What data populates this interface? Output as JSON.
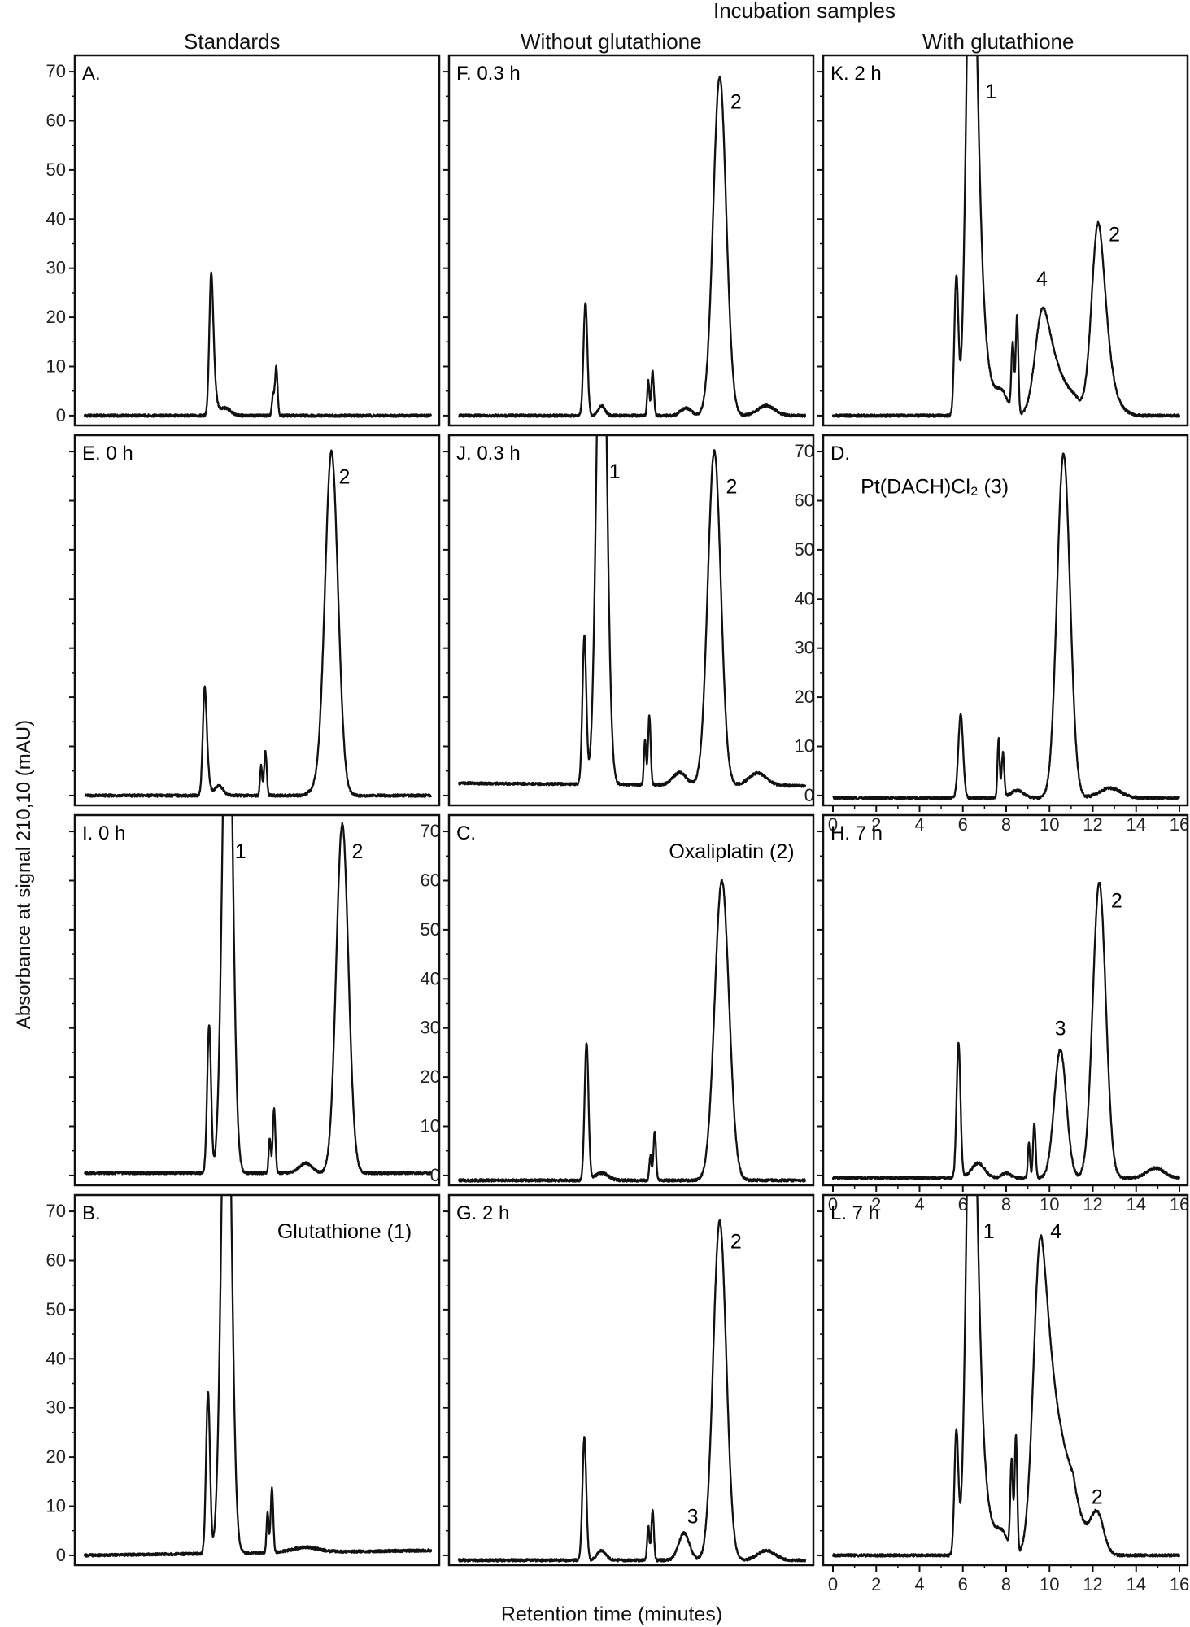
{
  "figure": {
    "headers": {
      "incubation": "Incubation samples",
      "standards": "Standards",
      "without": "Without glutathione",
      "with": "With glutathione"
    },
    "ylabel": "Absorbance at signal 210,10 (mAU)",
    "xlabel": "Retention time (minutes)",
    "colors": {
      "trace": "#111111",
      "frame": "#111111"
    }
  },
  "chart_data": [
    {
      "id": "A",
      "type": "line",
      "title": "A.",
      "xlim": [
        0,
        16
      ],
      "ylim": [
        -2,
        72
      ],
      "xticks": [
        0,
        2,
        4,
        6,
        8,
        10,
        12,
        14,
        16
      ],
      "yticks": [
        0,
        10,
        20,
        30,
        40,
        50,
        60,
        70
      ],
      "show_yticks": true,
      "show_xticks": false,
      "baseline_start": 0,
      "baseline_end": 0,
      "peaks": [
        {
          "t": 5.85,
          "h": 29,
          "w": 0.09,
          "tail": 0.4
        },
        {
          "t": 6.5,
          "h": 1.5,
          "w": 0.25
        },
        {
          "t": 8.7,
          "h": 4,
          "w": 0.05
        },
        {
          "t": 8.85,
          "h": 10,
          "w": 0.06
        }
      ],
      "labels": []
    },
    {
      "id": "E",
      "type": "line",
      "title": "E. 0 h",
      "xlim": [
        0,
        16
      ],
      "ylim": [
        -2,
        72
      ],
      "xticks": [
        0,
        2,
        4,
        6,
        8,
        10,
        12,
        14,
        16
      ],
      "yticks": [
        0,
        10,
        20,
        30,
        40,
        50,
        60,
        70
      ],
      "show_yticks": false,
      "show_xticks": false,
      "baseline_start": 0,
      "baseline_end": 0,
      "peaks": [
        {
          "t": 5.55,
          "h": 22,
          "w": 0.09,
          "tail": 0.3
        },
        {
          "t": 6.2,
          "h": 2,
          "w": 0.2
        },
        {
          "t": 8.15,
          "h": 6,
          "w": 0.05
        },
        {
          "t": 8.35,
          "h": 9,
          "w": 0.06
        },
        {
          "t": 10.6,
          "h": 1,
          "w": 0.25
        },
        {
          "t": 11.4,
          "h": 70,
          "w": 0.3
        }
      ],
      "labels": [
        {
          "text": "2",
          "t": 12.0,
          "v": 65
        }
      ]
    },
    {
      "id": "I",
      "type": "line",
      "title": "I. 0 h",
      "xlim": [
        0,
        16
      ],
      "ylim": [
        -2,
        72
      ],
      "xticks": [
        0,
        2,
        4,
        6,
        8,
        10,
        12,
        14,
        16
      ],
      "yticks": [
        0,
        10,
        20,
        30,
        40,
        50,
        60,
        70
      ],
      "show_yticks": false,
      "show_xticks": false,
      "baseline_start": 0.5,
      "baseline_end": 0.5,
      "peaks": [
        {
          "t": 5.75,
          "h": 30,
          "w": 0.09
        },
        {
          "t": 6.6,
          "h": 120,
          "w": 0.22
        },
        {
          "t": 8.55,
          "h": 7,
          "w": 0.05
        },
        {
          "t": 8.75,
          "h": 13,
          "w": 0.06
        },
        {
          "t": 10.2,
          "h": 2,
          "w": 0.3
        },
        {
          "t": 11.9,
          "h": 71,
          "w": 0.28
        }
      ],
      "labels": [
        {
          "text": "1",
          "t": 7.2,
          "v": 66
        },
        {
          "text": "2",
          "t": 12.6,
          "v": 66
        }
      ]
    },
    {
      "id": "B",
      "type": "line",
      "title": "B.",
      "xlim": [
        0,
        16
      ],
      "ylim": [
        -2,
        72
      ],
      "xticks": [
        0,
        2,
        4,
        6,
        8,
        10,
        12,
        14,
        16
      ],
      "yticks": [
        0,
        10,
        20,
        30,
        40,
        50,
        60,
        70
      ],
      "show_yticks": true,
      "show_xticks": false,
      "baseline_start": 0,
      "baseline_end": 1,
      "peaks": [
        {
          "t": 5.7,
          "h": 33,
          "w": 0.09
        },
        {
          "t": 6.55,
          "h": 120,
          "w": 0.22
        },
        {
          "t": 8.45,
          "h": 8,
          "w": 0.05
        },
        {
          "t": 8.65,
          "h": 13,
          "w": 0.06
        },
        {
          "t": 10.2,
          "h": 1,
          "w": 0.6
        }
      ],
      "labels": [
        {
          "text": "Glutathione (1)",
          "t": 12.0,
          "v": 66
        }
      ]
    },
    {
      "id": "F",
      "type": "line",
      "title": "F. 0.3 h",
      "xlim": [
        0,
        16
      ],
      "ylim": [
        -2,
        72
      ],
      "xticks": [
        0,
        2,
        4,
        6,
        8,
        10,
        12,
        14,
        16
      ],
      "yticks": [
        0,
        10,
        20,
        30,
        40,
        50,
        60,
        70
      ],
      "show_yticks": false,
      "show_xticks": false,
      "baseline_start": 0,
      "baseline_end": 0,
      "peaks": [
        {
          "t": 5.85,
          "h": 23,
          "w": 0.09
        },
        {
          "t": 6.6,
          "h": 2,
          "w": 0.15
        },
        {
          "t": 8.75,
          "h": 7,
          "w": 0.05
        },
        {
          "t": 8.95,
          "h": 9,
          "w": 0.06
        },
        {
          "t": 10.5,
          "h": 1.5,
          "w": 0.25
        },
        {
          "t": 12.05,
          "h": 69,
          "w": 0.3
        },
        {
          "t": 14.2,
          "h": 2,
          "w": 0.4
        }
      ],
      "labels": [
        {
          "text": "2",
          "t": 12.8,
          "v": 64
        }
      ]
    },
    {
      "id": "J",
      "type": "line",
      "title": "J. 0.3 h",
      "xlim": [
        0,
        16
      ],
      "ylim": [
        -2,
        72
      ],
      "xticks": [
        0,
        2,
        4,
        6,
        8,
        10,
        12,
        14,
        16
      ],
      "yticks": [
        0,
        10,
        20,
        30,
        40,
        50,
        60,
        70
      ],
      "show_yticks": false,
      "show_xticks": false,
      "baseline_start": 2.5,
      "baseline_end": 2,
      "peaks": [
        {
          "t": 5.8,
          "h": 30,
          "w": 0.09
        },
        {
          "t": 6.6,
          "h": 120,
          "w": 0.22
        },
        {
          "t": 8.6,
          "h": 9,
          "w": 0.05
        },
        {
          "t": 8.8,
          "h": 14,
          "w": 0.06
        },
        {
          "t": 10.2,
          "h": 2.5,
          "w": 0.3
        },
        {
          "t": 11.8,
          "h": 68,
          "w": 0.3
        },
        {
          "t": 13.8,
          "h": 2.5,
          "w": 0.4
        }
      ],
      "labels": [
        {
          "text": "1",
          "t": 7.2,
          "v": 66
        },
        {
          "text": "2",
          "t": 12.6,
          "v": 63
        }
      ]
    },
    {
      "id": "C",
      "type": "line",
      "title": "C.",
      "xlim": [
        0,
        16
      ],
      "ylim": [
        -2,
        72
      ],
      "xticks": [
        0,
        2,
        4,
        6,
        8,
        10,
        12,
        14,
        16
      ],
      "yticks": [
        0,
        10,
        20,
        30,
        40,
        50,
        60,
        70
      ],
      "show_yticks": true,
      "show_xticks": false,
      "baseline_start": -1,
      "baseline_end": -1,
      "peaks": [
        {
          "t": 5.9,
          "h": 28,
          "w": 0.09
        },
        {
          "t": 6.6,
          "h": 1.5,
          "w": 0.3
        },
        {
          "t": 8.85,
          "h": 5,
          "w": 0.05
        },
        {
          "t": 9.05,
          "h": 10,
          "w": 0.06
        },
        {
          "t": 12.15,
          "h": 61,
          "w": 0.33
        }
      ],
      "labels": [
        {
          "text": "Oxaliplatin (2)",
          "t": 12.6,
          "v": 66
        }
      ]
    },
    {
      "id": "G",
      "type": "line",
      "title": "G. 2 h",
      "xlim": [
        0,
        16
      ],
      "ylim": [
        -2,
        72
      ],
      "xticks": [
        0,
        2,
        4,
        6,
        8,
        10,
        12,
        14,
        16
      ],
      "yticks": [
        0,
        10,
        20,
        30,
        40,
        50,
        60,
        70
      ],
      "show_yticks": false,
      "show_xticks": false,
      "baseline_start": -1,
      "baseline_end": -1,
      "peaks": [
        {
          "t": 5.8,
          "h": 25,
          "w": 0.09
        },
        {
          "t": 6.6,
          "h": 2,
          "w": 0.2
        },
        {
          "t": 8.75,
          "h": 7,
          "w": 0.05
        },
        {
          "t": 8.95,
          "h": 10,
          "w": 0.06
        },
        {
          "t": 10.4,
          "h": 5.5,
          "w": 0.25
        },
        {
          "t": 12.05,
          "h": 69,
          "w": 0.3
        },
        {
          "t": 14.2,
          "h": 2,
          "w": 0.4
        }
      ],
      "labels": [
        {
          "text": "3",
          "t": 10.8,
          "v": 8
        },
        {
          "text": "2",
          "t": 12.8,
          "v": 64
        }
      ]
    },
    {
      "id": "K",
      "type": "line",
      "title": "K. 2 h",
      "xlim": [
        0,
        16
      ],
      "ylim": [
        -2,
        72
      ],
      "xticks": [
        0,
        2,
        4,
        6,
        8,
        10,
        12,
        14,
        16
      ],
      "yticks": [
        0,
        10,
        20,
        30,
        40,
        50,
        60,
        70
      ],
      "show_yticks": false,
      "show_xticks": false,
      "baseline_start": 0,
      "baseline_end": 0,
      "peaks": [
        {
          "t": 5.7,
          "h": 28,
          "w": 0.09
        },
        {
          "t": 6.4,
          "h": 120,
          "w": 0.22,
          "tail": 0.5
        },
        {
          "t": 7.8,
          "h": 4,
          "w": 0.3
        },
        {
          "t": 8.3,
          "h": 14,
          "w": 0.06
        },
        {
          "t": 8.5,
          "h": 20,
          "w": 0.06
        },
        {
          "t": 9.7,
          "h": 22,
          "w": 0.35,
          "tail": 0.9
        },
        {
          "t": 12.25,
          "h": 39,
          "w": 0.3,
          "tail": 0.4
        }
      ],
      "labels": [
        {
          "text": "1",
          "t": 7.3,
          "v": 66
        },
        {
          "text": "4",
          "t": 9.65,
          "v": 28
        },
        {
          "text": "2",
          "t": 13.0,
          "v": 37
        }
      ]
    },
    {
      "id": "D",
      "type": "line",
      "title": "D.",
      "xlim": [
        0,
        16
      ],
      "ylim": [
        -2,
        72
      ],
      "xticks": [
        0,
        2,
        4,
        6,
        8,
        10,
        12,
        14,
        16
      ],
      "yticks": [
        0,
        10,
        20,
        30,
        40,
        50,
        60,
        70
      ],
      "show_yticks": true,
      "show_xticks": true,
      "baseline_start": -0.5,
      "baseline_end": -0.5,
      "peaks": [
        {
          "t": 5.9,
          "h": 17,
          "w": 0.11
        },
        {
          "t": 7.65,
          "h": 12,
          "w": 0.05
        },
        {
          "t": 7.85,
          "h": 9,
          "w": 0.06
        },
        {
          "t": 8.5,
          "h": 1.5,
          "w": 0.3
        },
        {
          "t": 10.65,
          "h": 70,
          "w": 0.3
        },
        {
          "t": 12.8,
          "h": 2,
          "w": 0.5
        }
      ],
      "labels": [
        {
          "text": "Pt(DACH)Cl₂ (3)",
          "t": 4.7,
          "v": 63
        }
      ]
    },
    {
      "id": "H",
      "type": "line",
      "title": "H. 7 h",
      "xlim": [
        0,
        16
      ],
      "ylim": [
        -2,
        72
      ],
      "xticks": [
        0,
        2,
        4,
        6,
        8,
        10,
        12,
        14,
        16
      ],
      "yticks": [
        0,
        10,
        20,
        30,
        40,
        50,
        60,
        70
      ],
      "show_yticks": false,
      "show_xticks": true,
      "baseline_start": -0.5,
      "baseline_end": -0.5,
      "peaks": [
        {
          "t": 5.8,
          "h": 27.5,
          "w": 0.09
        },
        {
          "t": 6.7,
          "h": 3,
          "w": 0.3
        },
        {
          "t": 8.0,
          "h": 1,
          "w": 0.2
        },
        {
          "t": 9.05,
          "h": 7,
          "w": 0.05
        },
        {
          "t": 9.3,
          "h": 11,
          "w": 0.06
        },
        {
          "t": 10.5,
          "h": 26,
          "w": 0.28
        },
        {
          "t": 12.3,
          "h": 60,
          "w": 0.3
        },
        {
          "t": 14.9,
          "h": 2,
          "w": 0.4
        }
      ],
      "labels": [
        {
          "text": "3",
          "t": 10.5,
          "v": 30
        },
        {
          "text": "2",
          "t": 13.1,
          "v": 56
        }
      ]
    },
    {
      "id": "L",
      "type": "line",
      "title": "L. 7 h",
      "xlim": [
        0,
        16
      ],
      "ylim": [
        -2,
        72
      ],
      "xticks": [
        0,
        2,
        4,
        6,
        8,
        10,
        12,
        14,
        16
      ],
      "yticks": [
        0,
        10,
        20,
        30,
        40,
        50,
        60,
        70
      ],
      "show_yticks": false,
      "show_xticks": true,
      "baseline_start": 0,
      "baseline_end": 0,
      "peaks": [
        {
          "t": 5.7,
          "h": 25,
          "w": 0.09
        },
        {
          "t": 6.4,
          "h": 120,
          "w": 0.22,
          "tail": 0.5
        },
        {
          "t": 7.8,
          "h": 4,
          "w": 0.3
        },
        {
          "t": 8.25,
          "h": 18,
          "w": 0.06
        },
        {
          "t": 8.45,
          "h": 24,
          "w": 0.06
        },
        {
          "t": 9.6,
          "h": 65,
          "w": 0.33,
          "tail": 1.1
        },
        {
          "t": 12.2,
          "h": 8,
          "w": 0.3
        }
      ],
      "labels": [
        {
          "text": "1",
          "t": 7.2,
          "v": 66
        },
        {
          "text": "4",
          "t": 10.3,
          "v": 66
        },
        {
          "text": "2",
          "t": 12.2,
          "v": 12
        }
      ]
    }
  ]
}
